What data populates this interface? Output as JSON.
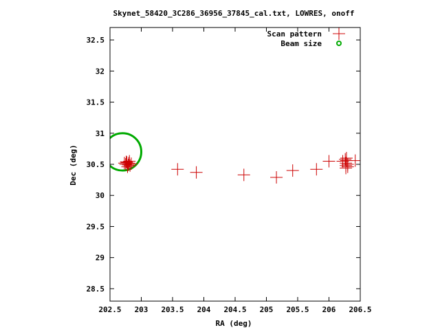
{
  "chart_data": {
    "type": "scatter",
    "title": "Skynet_58420_3C286_36956_37845_cal.txt, LOWRES, onoff",
    "xlabel": "RA (deg)",
    "ylabel": "Dec (deg)",
    "xlim": [
      202.5,
      206.5
    ],
    "ylim": [
      28.3,
      32.7
    ],
    "xticks": [
      202.5,
      203,
      203.5,
      204,
      204.5,
      205,
      205.5,
      206,
      206.5
    ],
    "xtick_labels": [
      "202.5",
      "203",
      "203.5",
      "204",
      "204.5",
      "205",
      "205.5",
      "206",
      "206.5"
    ],
    "yticks": [
      28.5,
      29,
      29.5,
      30,
      30.5,
      31,
      31.5,
      32,
      32.5
    ],
    "ytick_labels": [
      "28.5",
      "29",
      "29.5",
      "30",
      "30.5",
      "31",
      "31.5",
      "32",
      "32.5"
    ],
    "grid": false,
    "legend_position": "top-right",
    "series": [
      {
        "name": "Scan pattern",
        "marker": "plus",
        "color": "#cc0000",
        "points": [
          [
            202.73,
            30.52
          ],
          [
            202.75,
            30.5
          ],
          [
            202.77,
            30.53
          ],
          [
            202.79,
            30.49
          ],
          [
            202.8,
            30.52
          ],
          [
            202.82,
            30.48
          ],
          [
            202.84,
            30.51
          ],
          [
            202.78,
            30.46
          ],
          [
            202.81,
            30.55
          ],
          [
            202.76,
            30.54
          ],
          [
            203.58,
            30.42
          ],
          [
            203.88,
            30.37
          ],
          [
            204.64,
            30.33
          ],
          [
            205.16,
            30.29
          ],
          [
            205.42,
            30.4
          ],
          [
            205.8,
            30.42
          ],
          [
            206.0,
            30.55
          ],
          [
            206.27,
            30.44
          ],
          [
            206.27,
            30.48
          ],
          [
            206.27,
            30.52
          ],
          [
            206.28,
            30.56
          ],
          [
            206.28,
            30.6
          ],
          [
            206.3,
            30.5
          ],
          [
            206.3,
            30.46
          ],
          [
            206.26,
            30.58
          ],
          [
            206.22,
            30.55
          ],
          [
            206.42,
            30.56
          ]
        ]
      },
      {
        "name": "Beam size",
        "marker": "circle",
        "color": "#00aa00",
        "center": [
          202.7,
          30.7
        ],
        "radius_ra": 0.3,
        "radius_dec": 0.3
      }
    ]
  }
}
